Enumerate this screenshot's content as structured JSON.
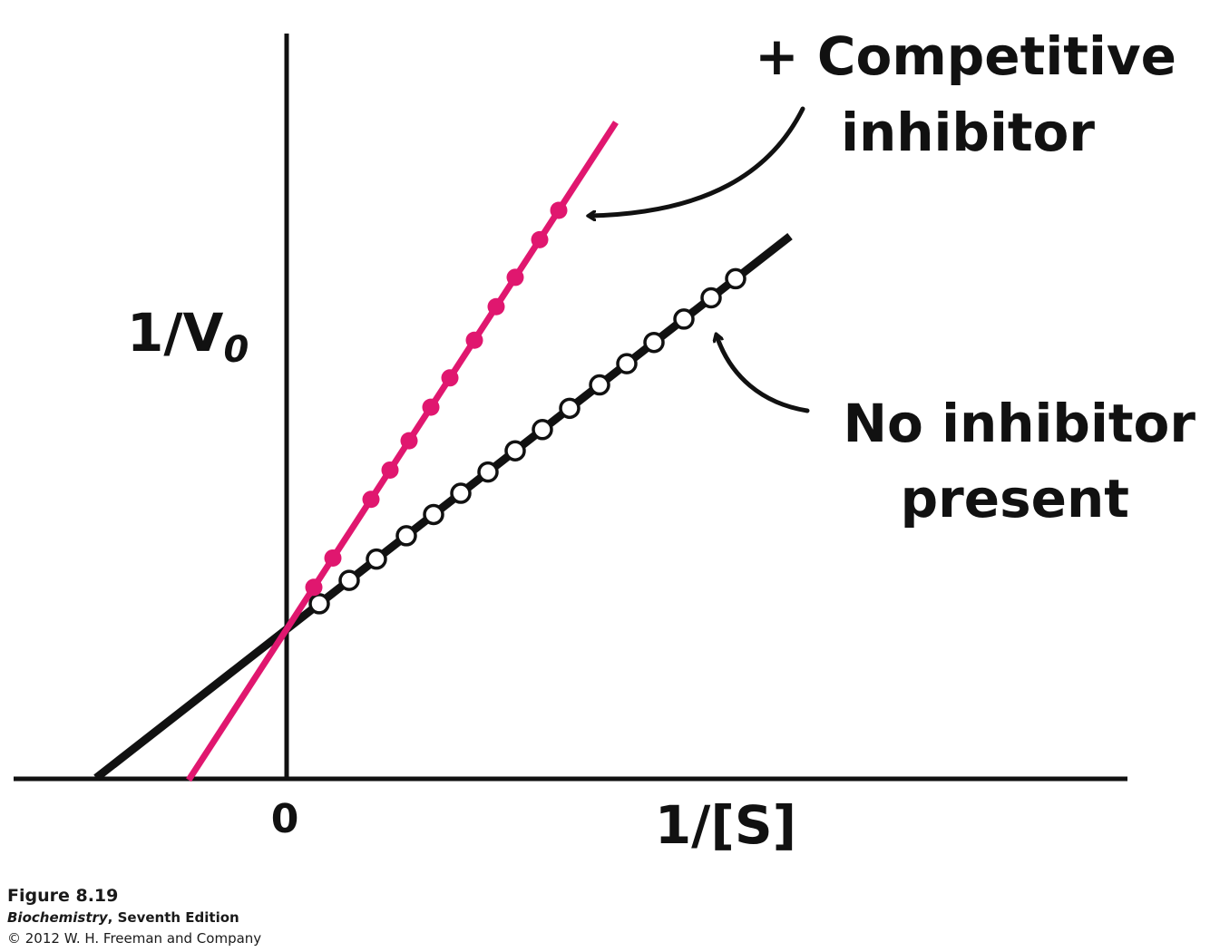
{
  "chart_data": {
    "type": "line",
    "xlabel": "1/[S]",
    "ylabel_main": "1/V",
    "ylabel_sub": "0",
    "x_tick_label": "0",
    "xlim": [
      -0.7,
      2.97
    ],
    "ylim": [
      0,
      2.45
    ],
    "grid": false,
    "legend": "none",
    "colors": {
      "no_inhibitor": "#111111",
      "inhibitor": "#e0176f"
    },
    "series": [
      {
        "name": "No inhibitor present",
        "marker": "open-circle",
        "line_x": [
          -0.7,
          1.85
        ],
        "points_x": [
          0.12,
          0.23,
          0.33,
          0.44,
          0.54,
          0.64,
          0.74,
          0.84,
          0.94,
          1.04,
          1.15,
          1.25,
          1.35,
          1.46,
          1.56,
          1.65
        ],
        "values_m": 0.71,
        "values_b": 0.5
      },
      {
        "name": "+ Competitive inhibitor",
        "marker": "filled-circle",
        "line_x": [
          -0.36,
          1.21
        ],
        "points_x": [
          0.1,
          0.17,
          0.31,
          0.38,
          0.45,
          0.53,
          0.6,
          0.69,
          0.77,
          0.84,
          0.93,
          1.0
        ],
        "values_m": 1.4,
        "values_b": 0.5
      }
    ],
    "annotations": [
      {
        "lines": [
          "+ Competitive",
          "inhibitor"
        ],
        "points_to": "inhibitor"
      },
      {
        "lines": [
          "No inhibitor",
          "present"
        ],
        "points_to": "no_inhibitor"
      }
    ]
  },
  "caption": {
    "figure": "Figure 8.19",
    "book_title": "Biochemistry",
    "book_edition": ", Seventh Edition",
    "copyright": "© 2012 W. H. Freeman and Company"
  }
}
